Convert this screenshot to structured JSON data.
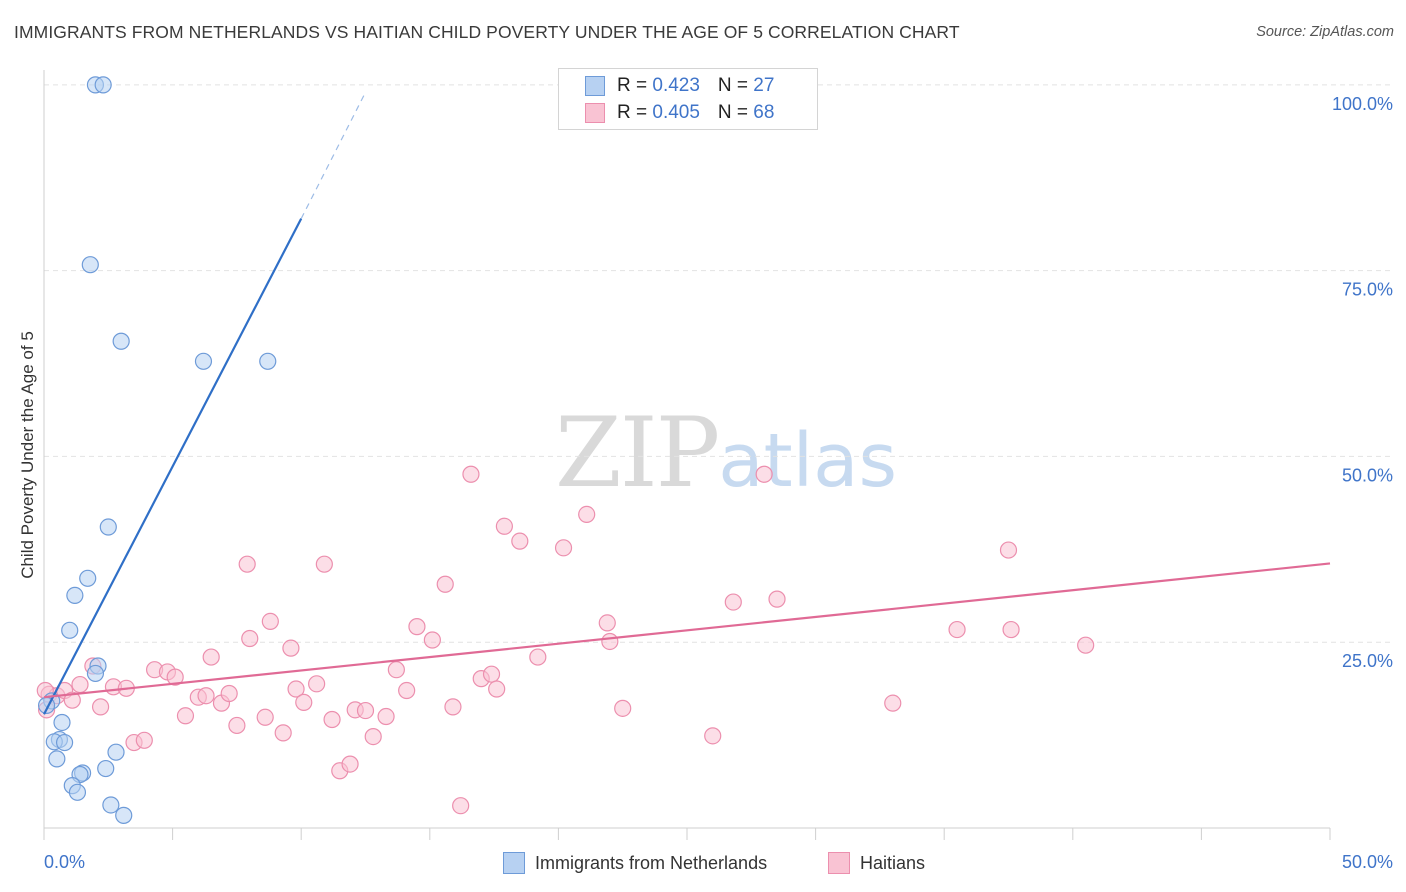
{
  "title": "IMMIGRANTS FROM NETHERLANDS VS HAITIAN CHILD POVERTY UNDER THE AGE OF 5 CORRELATION CHART",
  "source": "Source: ZipAtlas.com",
  "watermark": {
    "zip": "ZIP",
    "atlas": "atlas"
  },
  "legend_top": [
    {
      "r_label": "R = ",
      "r_value": "0.423",
      "n_label": "N = ",
      "n_value": "27",
      "fill": "#b7d1f2",
      "stroke": "#6e9bd8"
    },
    {
      "r_label": "R = ",
      "r_value": "0.405",
      "n_label": "N = ",
      "n_value": "68",
      "fill": "#f9c3d3",
      "stroke": "#ec8fae"
    }
  ],
  "legend_bottom": [
    {
      "label": "Immigrants from Netherlands",
      "fill": "#b7d1f2",
      "stroke": "#6e9bd8"
    },
    {
      "label": "Haitians",
      "fill": "#f9c3d3",
      "stroke": "#ec8fae"
    }
  ],
  "chart_data": {
    "type": "scatter",
    "title": "IMMIGRANTS FROM NETHERLANDS VS HAITIAN CHILD POVERTY UNDER THE AGE OF 5 CORRELATION CHART",
    "xlabel": "",
    "ylabel": "Child Poverty Under the Age of 5",
    "xlim": [
      0,
      50
    ],
    "ylim": [
      0,
      102
    ],
    "x_tick_labels": [
      "0.0%",
      "50.0%"
    ],
    "y_ticks": [
      25,
      50,
      75,
      100
    ],
    "y_tick_labels": [
      "25.0%",
      "50.0%",
      "75.0%",
      "100.0%"
    ],
    "grid": true,
    "legend_position": "top-center",
    "series": [
      {
        "name": "Immigrants from Netherlands",
        "color": "#6e9bd8",
        "fill": "#b7d1f2",
        "line_color": "#2f6fc7",
        "trend": {
          "x0": 0.0,
          "y0": 15.3,
          "x1": 10.0,
          "y1": 82.0,
          "dash_x1": 12.5,
          "dash_y1": 99.0
        },
        "points": [
          [
            2.0,
            100.0
          ],
          [
            2.3,
            100.0
          ],
          [
            1.8,
            75.8
          ],
          [
            3.0,
            65.5
          ],
          [
            6.2,
            62.8
          ],
          [
            8.7,
            62.8
          ],
          [
            2.5,
            40.5
          ],
          [
            1.7,
            33.6
          ],
          [
            1.2,
            31.3
          ],
          [
            1.0,
            26.6
          ],
          [
            2.1,
            21.8
          ],
          [
            2.0,
            20.8
          ],
          [
            0.3,
            17.1
          ],
          [
            0.7,
            14.2
          ],
          [
            0.6,
            11.9
          ],
          [
            0.4,
            11.6
          ],
          [
            0.8,
            11.5
          ],
          [
            2.8,
            10.2
          ],
          [
            0.5,
            9.3
          ],
          [
            1.5,
            7.4
          ],
          [
            1.4,
            7.2
          ],
          [
            2.4,
            8.0
          ],
          [
            1.1,
            5.7
          ],
          [
            1.3,
            4.8
          ],
          [
            2.6,
            3.1
          ],
          [
            3.1,
            1.7
          ],
          [
            0.1,
            16.5
          ]
        ]
      },
      {
        "name": "Haitians",
        "color": "#ec8fae",
        "fill": "#f9c3d3",
        "line_color": "#e06a95",
        "trend": {
          "x0": 0.0,
          "y0": 17.6,
          "x1": 50.0,
          "y1": 35.6
        },
        "points": [
          [
            0.2,
            18.0
          ],
          [
            0.5,
            17.8
          ],
          [
            0.8,
            18.5
          ],
          [
            1.1,
            17.2
          ],
          [
            1.4,
            19.3
          ],
          [
            1.9,
            21.8
          ],
          [
            2.2,
            16.3
          ],
          [
            2.7,
            19.0
          ],
          [
            3.2,
            18.8
          ],
          [
            3.5,
            11.5
          ],
          [
            3.9,
            11.8
          ],
          [
            4.3,
            21.3
          ],
          [
            4.8,
            21.0
          ],
          [
            5.1,
            20.3
          ],
          [
            5.5,
            15.1
          ],
          [
            6.0,
            17.6
          ],
          [
            6.3,
            17.8
          ],
          [
            6.5,
            23.0
          ],
          [
            6.9,
            16.8
          ],
          [
            7.2,
            18.1
          ],
          [
            7.5,
            13.8
          ],
          [
            8.0,
            25.5
          ],
          [
            7.9,
            35.5
          ],
          [
            8.6,
            14.9
          ],
          [
            8.8,
            27.8
          ],
          [
            9.3,
            12.8
          ],
          [
            9.6,
            24.2
          ],
          [
            9.8,
            18.7
          ],
          [
            10.1,
            16.9
          ],
          [
            10.6,
            19.4
          ],
          [
            10.9,
            35.5
          ],
          [
            11.2,
            14.6
          ],
          [
            11.5,
            7.7
          ],
          [
            11.9,
            8.6
          ],
          [
            12.1,
            15.9
          ],
          [
            12.5,
            15.8
          ],
          [
            12.8,
            12.3
          ],
          [
            13.3,
            15.0
          ],
          [
            13.7,
            21.3
          ],
          [
            14.1,
            18.5
          ],
          [
            14.5,
            27.1
          ],
          [
            15.1,
            25.3
          ],
          [
            15.6,
            32.8
          ],
          [
            15.9,
            16.3
          ],
          [
            16.2,
            3.0
          ],
          [
            16.6,
            47.6
          ],
          [
            17.0,
            20.1
          ],
          [
            17.4,
            20.7
          ],
          [
            17.6,
            18.7
          ],
          [
            17.9,
            40.6
          ],
          [
            18.5,
            38.6
          ],
          [
            19.2,
            23.0
          ],
          [
            20.2,
            37.7
          ],
          [
            21.1,
            42.2
          ],
          [
            21.9,
            27.6
          ],
          [
            22.0,
            25.1
          ],
          [
            22.5,
            16.1
          ],
          [
            26.0,
            12.4
          ],
          [
            26.8,
            30.4
          ],
          [
            28.0,
            47.6
          ],
          [
            28.5,
            30.8
          ],
          [
            33.0,
            16.8
          ],
          [
            35.5,
            26.7
          ],
          [
            37.5,
            37.4
          ],
          [
            37.6,
            26.7
          ],
          [
            40.5,
            24.6
          ],
          [
            0.05,
            18.5
          ],
          [
            0.1,
            15.9
          ]
        ]
      }
    ]
  }
}
